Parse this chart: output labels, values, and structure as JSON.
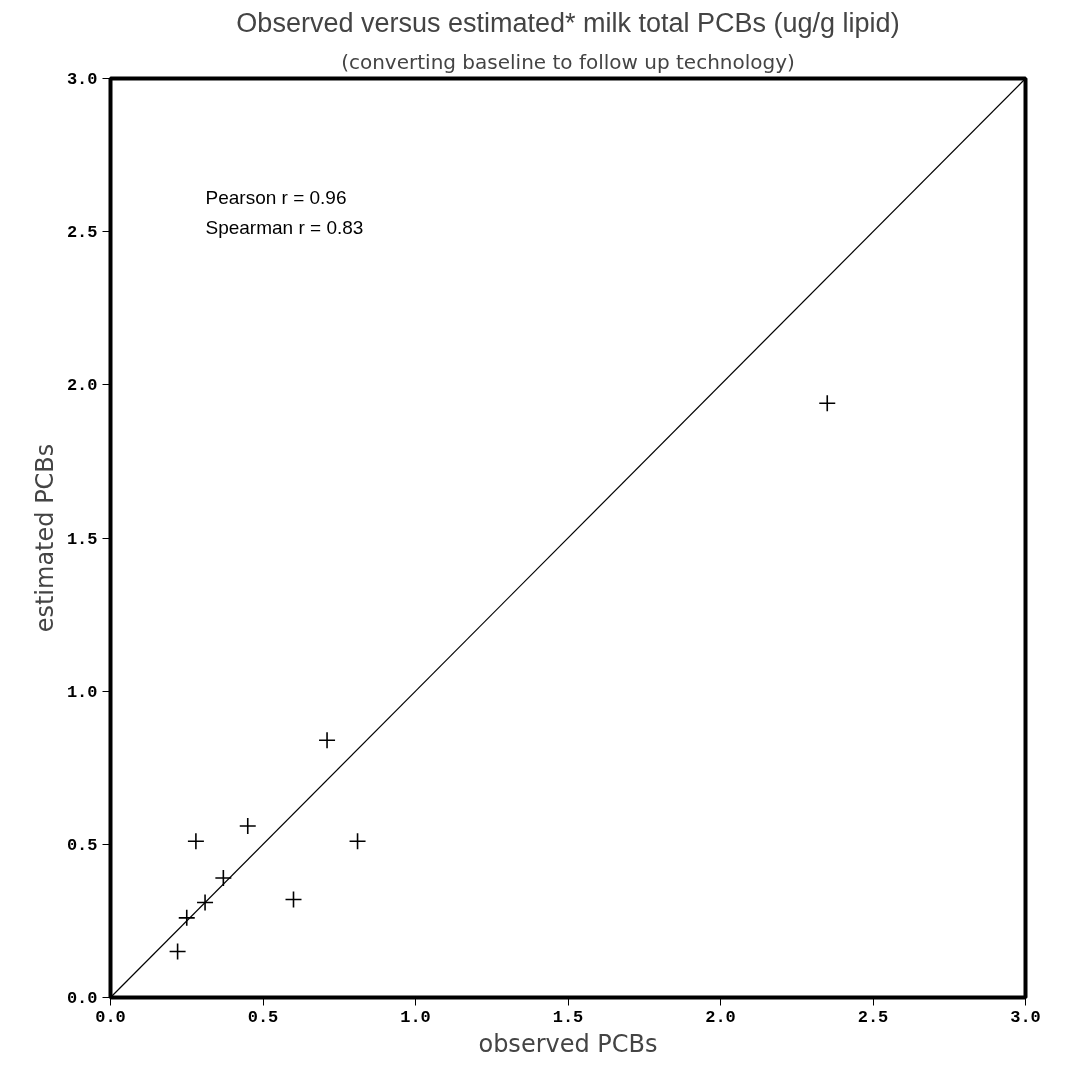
{
  "chart_data": {
    "type": "scatter",
    "title": "Observed versus estimated* milk total PCBs (ug/g lipid)",
    "subtitle": "(converting baseline to follow up technology)",
    "xlabel": "observed PCBs",
    "ylabel": "estimated PCBs",
    "series": [
      {
        "color": "#000000",
        "marker": "cross",
        "x": [
          0.22,
          0.25,
          0.28,
          0.31,
          0.37,
          0.45,
          0.6,
          0.71,
          0.81,
          2.35
        ],
        "values": [
          0.15,
          0.26,
          0.51,
          0.31,
          0.39,
          0.56,
          0.32,
          0.84,
          0.51,
          1.94
        ]
      },
      {
        "type": "line",
        "color": "#000000",
        "x": [
          0,
          3
        ],
        "values": [
          0,
          3
        ]
      }
    ],
    "xlim": [
      0,
      3
    ],
    "ylim": [
      0,
      3
    ],
    "xticks": [
      {
        "value": 0,
        "label": "0.0"
      },
      0.5,
      {
        "value": 1,
        "label": "1.0"
      },
      1.5,
      {
        "value": 2,
        "label": "2.0"
      },
      2.5,
      {
        "value": 3,
        "label": "3.0"
      }
    ],
    "yticks": [
      {
        "value": 0,
        "label": "0.0"
      },
      0.5,
      {
        "value": 1,
        "label": "1.0"
      },
      1.5,
      {
        "value": 2,
        "label": "2.0"
      },
      2.5,
      {
        "value": 3,
        "label": "3.0"
      }
    ],
    "annotations": [
      "Pearson r = 0.96",
      "Spearman r = 0.83"
    ],
    "grid": false
  }
}
